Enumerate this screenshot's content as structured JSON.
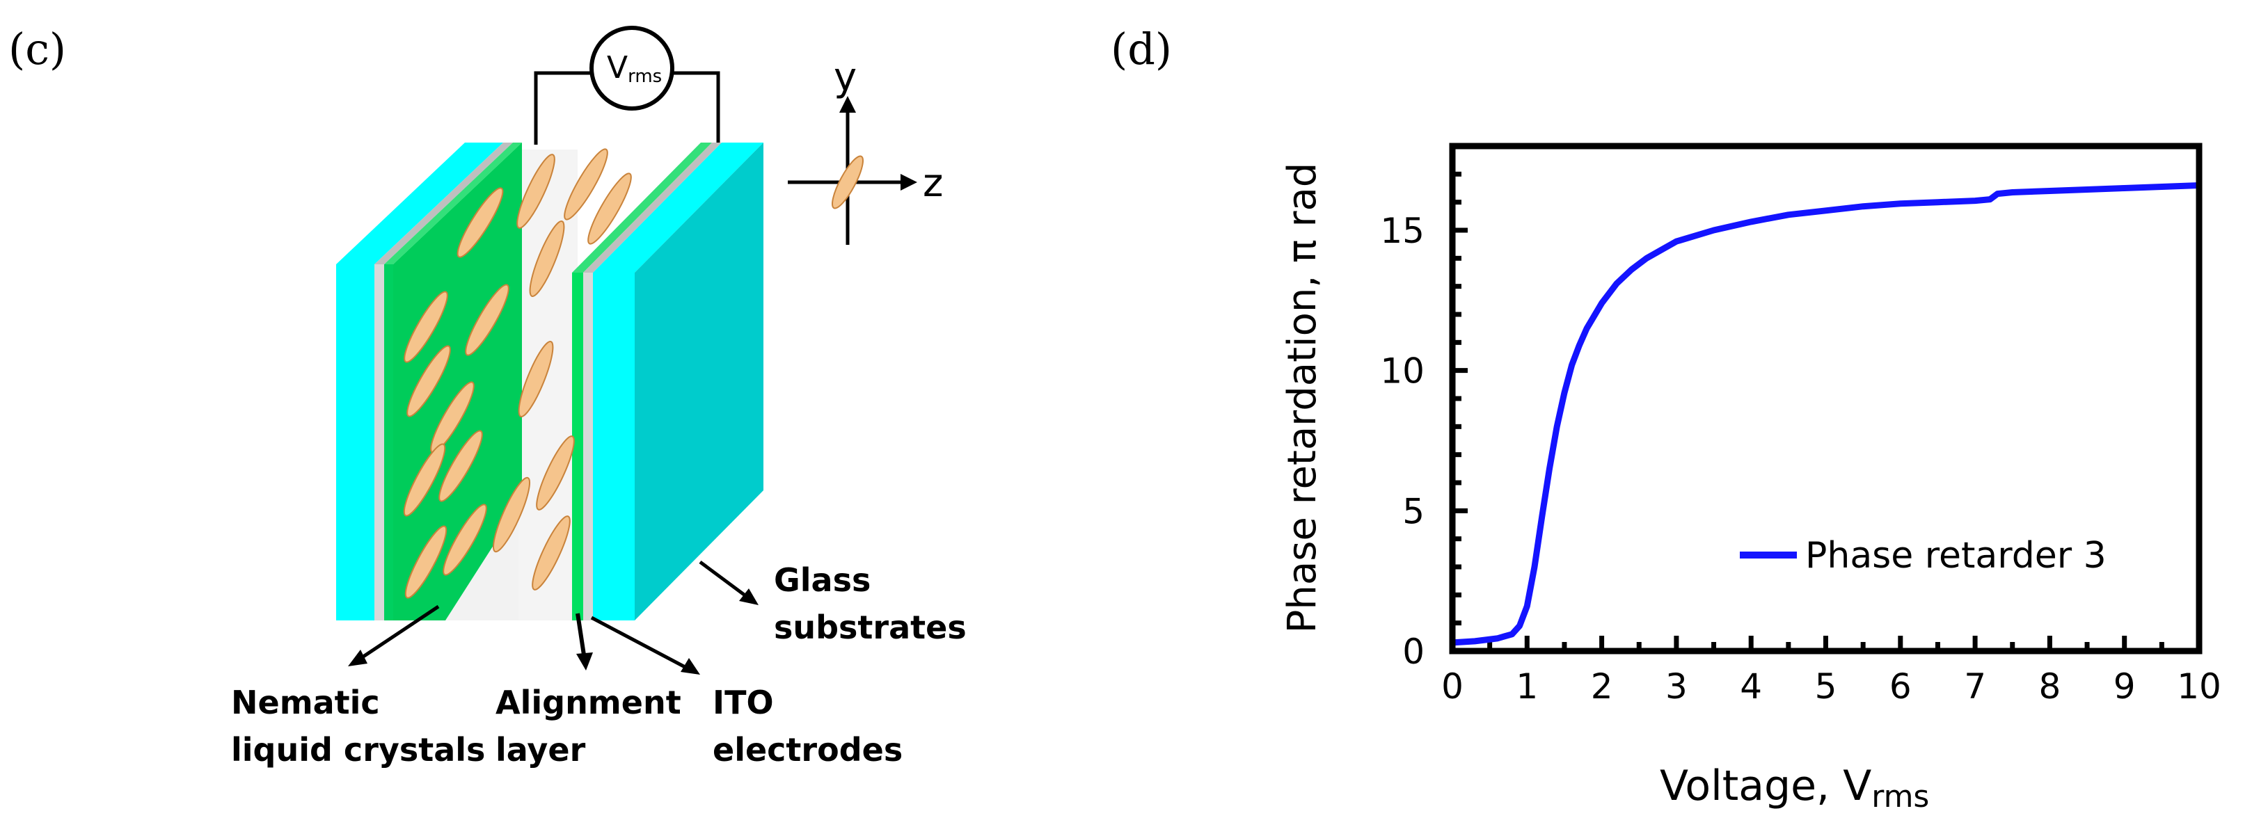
{
  "panel_c": {
    "panel_label": "(c)",
    "voltage_source": {
      "symbol": "V",
      "subscript": "rms"
    },
    "axes": {
      "y": "y",
      "z": "z"
    },
    "labels": {
      "glass_line1": "Glass",
      "glass_line2": "substrates",
      "nematic_line1": "Nematic",
      "nematic_line2": "liquid crystals",
      "alignment_line1": "Alignment",
      "alignment_line2": "layer",
      "ito_line1": "ITO",
      "ito_line2": "electrodes"
    },
    "colors": {
      "glass": "#00FFFF",
      "glass_side": "#00CCCC",
      "electrode": "#00D060",
      "alignment": "#D9D9D9",
      "lc_molecule": "#F5C48C"
    }
  },
  "panel_d": {
    "panel_label": "(d)",
    "ylabel": "Phase retardation, π rad",
    "xlabel_main": "Voltage, V",
    "xlabel_sub": "rms",
    "chart_data": {
      "type": "line",
      "xlabel": "Voltage, Vrms",
      "ylabel": "Phase retardation, π rad",
      "xlim": [
        0,
        10
      ],
      "ylim": [
        0,
        18
      ],
      "xticks": [
        "0",
        "1",
        "2",
        "3",
        "4",
        "5",
        "6",
        "7",
        "8",
        "9",
        "10"
      ],
      "yticks": [
        "0",
        "5",
        "10",
        "15"
      ],
      "legend": "bottom-right",
      "series": [
        {
          "name": "Phase retarder 3",
          "color": "#1414FF",
          "x": [
            0,
            0.3,
            0.6,
            0.8,
            0.9,
            1.0,
            1.1,
            1.2,
            1.3,
            1.4,
            1.5,
            1.6,
            1.7,
            1.8,
            2.0,
            2.2,
            2.4,
            2.6,
            2.8,
            3.0,
            3.5,
            4.0,
            4.5,
            5.0,
            5.5,
            6.0,
            6.5,
            7.0,
            7.2,
            7.3,
            7.5,
            8.0,
            8.5,
            9.0,
            9.5,
            10.0
          ],
          "y": [
            0.3,
            0.35,
            0.45,
            0.6,
            0.9,
            1.6,
            3.0,
            4.8,
            6.5,
            8.0,
            9.2,
            10.2,
            10.9,
            11.5,
            12.4,
            13.1,
            13.6,
            14.0,
            14.3,
            14.6,
            15.0,
            15.3,
            15.55,
            15.7,
            15.85,
            15.95,
            16.0,
            16.05,
            16.1,
            16.3,
            16.35,
            16.4,
            16.45,
            16.5,
            16.55,
            16.6
          ]
        }
      ]
    }
  }
}
